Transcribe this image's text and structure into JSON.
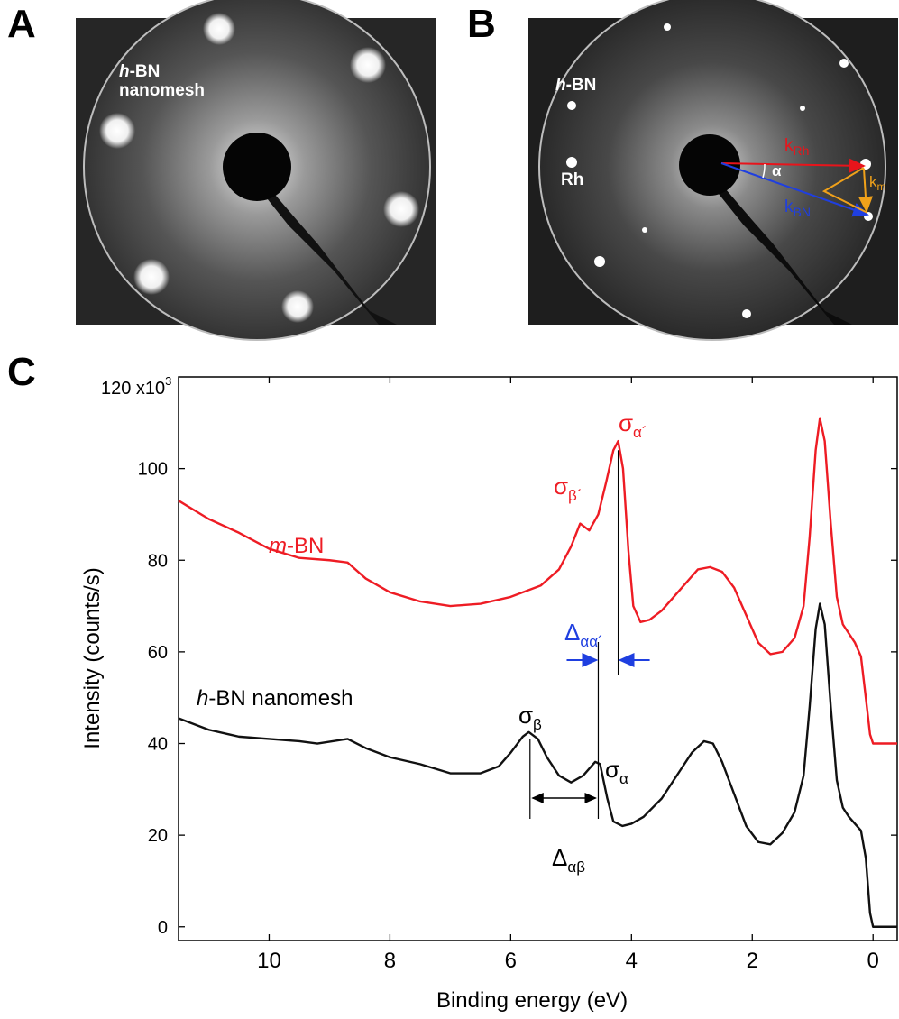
{
  "panels": {
    "a": {
      "letter": "A",
      "label_italic": "h",
      "label_rest": "-BN",
      "label_line2": "nanomesh"
    },
    "b": {
      "letter": "B",
      "label_hbn_italic": "h",
      "label_hbn_rest": "-BN",
      "label_rh": "Rh",
      "k_rh": {
        "main": "k",
        "sub": "Rh",
        "color": "#e8141b"
      },
      "k_bn": {
        "main": "k",
        "sub": "BN",
        "color": "#1f3fe0"
      },
      "k_m": {
        "main": "k",
        "sub": "m",
        "color": "#f0a11a"
      },
      "alpha": "α"
    },
    "c": {
      "letter": "C"
    }
  },
  "chart_data": {
    "type": "line",
    "xlabel": "Binding energy (eV)",
    "ylabel": "Intensity (counts/s)",
    "y_multiplier_label": "120 x10",
    "y_multiplier_exp": "3",
    "xlim": [
      11.5,
      -0.4
    ],
    "ylim": [
      -3,
      120
    ],
    "x_ticks": [
      {
        "value": 10,
        "label": "10"
      },
      {
        "value": 8,
        "label": "8"
      },
      {
        "value": 6,
        "label": "6"
      },
      {
        "value": 4,
        "label": "4"
      },
      {
        "value": 2,
        "label": "2"
      },
      {
        "value": 0,
        "label": "0"
      }
    ],
    "y_ticks": [
      {
        "value": 0,
        "label": "0"
      },
      {
        "value": 20,
        "label": "20"
      },
      {
        "value": 40,
        "label": "40"
      },
      {
        "value": 60,
        "label": "60"
      },
      {
        "value": 80,
        "label": "80"
      },
      {
        "value": 100,
        "label": "100"
      }
    ],
    "series": [
      {
        "name": "m-BN",
        "color": "#ee1c24",
        "points": [
          [
            11.5,
            93
          ],
          [
            11.0,
            89
          ],
          [
            10.5,
            86
          ],
          [
            10.0,
            82.5
          ],
          [
            9.5,
            80.5
          ],
          [
            9.0,
            80
          ],
          [
            8.7,
            79.5
          ],
          [
            8.4,
            76
          ],
          [
            8.0,
            73
          ],
          [
            7.5,
            71
          ],
          [
            7.0,
            70
          ],
          [
            6.5,
            70.5
          ],
          [
            6.0,
            72
          ],
          [
            5.5,
            74.5
          ],
          [
            5.2,
            78
          ],
          [
            5.0,
            83
          ],
          [
            4.85,
            88
          ],
          [
            4.7,
            86.5
          ],
          [
            4.55,
            90
          ],
          [
            4.42,
            97
          ],
          [
            4.3,
            104
          ],
          [
            4.22,
            106
          ],
          [
            4.14,
            100
          ],
          [
            4.05,
            82
          ],
          [
            3.97,
            70
          ],
          [
            3.85,
            66.5
          ],
          [
            3.7,
            67
          ],
          [
            3.5,
            69
          ],
          [
            3.3,
            72
          ],
          [
            3.1,
            75
          ],
          [
            2.9,
            78
          ],
          [
            2.7,
            78.5
          ],
          [
            2.5,
            77.5
          ],
          [
            2.3,
            74
          ],
          [
            2.1,
            68
          ],
          [
            1.9,
            62
          ],
          [
            1.7,
            59.5
          ],
          [
            1.5,
            60
          ],
          [
            1.3,
            63
          ],
          [
            1.15,
            70
          ],
          [
            1.05,
            85
          ],
          [
            0.95,
            104
          ],
          [
            0.88,
            111
          ],
          [
            0.8,
            106
          ],
          [
            0.7,
            88
          ],
          [
            0.6,
            72
          ],
          [
            0.5,
            66
          ],
          [
            0.4,
            64
          ],
          [
            0.3,
            62
          ],
          [
            0.2,
            59
          ],
          [
            0.12,
            50
          ],
          [
            0.05,
            42
          ],
          [
            0.0,
            40
          ],
          [
            -0.2,
            40
          ],
          [
            -0.4,
            40
          ]
        ]
      },
      {
        "name": "h-BN nanomesh",
        "color": "#111111",
        "points": [
          [
            11.5,
            45.5
          ],
          [
            11.0,
            43
          ],
          [
            10.5,
            41.5
          ],
          [
            10.0,
            41
          ],
          [
            9.5,
            40.5
          ],
          [
            9.2,
            40
          ],
          [
            8.7,
            41
          ],
          [
            8.4,
            39
          ],
          [
            8.0,
            37
          ],
          [
            7.5,
            35.5
          ],
          [
            7.0,
            33.5
          ],
          [
            6.5,
            33.5
          ],
          [
            6.2,
            35
          ],
          [
            6.0,
            38
          ],
          [
            5.8,
            41.5
          ],
          [
            5.7,
            42.5
          ],
          [
            5.55,
            41
          ],
          [
            5.4,
            37
          ],
          [
            5.2,
            33
          ],
          [
            5.0,
            31.5
          ],
          [
            4.8,
            33
          ],
          [
            4.6,
            36
          ],
          [
            4.52,
            35.5
          ],
          [
            4.4,
            28
          ],
          [
            4.3,
            23
          ],
          [
            4.15,
            22
          ],
          [
            4.0,
            22.5
          ],
          [
            3.8,
            24
          ],
          [
            3.5,
            28
          ],
          [
            3.2,
            34
          ],
          [
            3.0,
            38
          ],
          [
            2.8,
            40.5
          ],
          [
            2.65,
            40
          ],
          [
            2.5,
            36
          ],
          [
            2.3,
            29
          ],
          [
            2.1,
            22
          ],
          [
            1.9,
            18.5
          ],
          [
            1.7,
            18
          ],
          [
            1.5,
            20.5
          ],
          [
            1.3,
            25
          ],
          [
            1.15,
            33
          ],
          [
            1.05,
            48
          ],
          [
            0.95,
            65
          ],
          [
            0.88,
            70.5
          ],
          [
            0.8,
            66
          ],
          [
            0.7,
            48
          ],
          [
            0.6,
            32
          ],
          [
            0.5,
            26
          ],
          [
            0.4,
            24
          ],
          [
            0.3,
            22.5
          ],
          [
            0.2,
            21
          ],
          [
            0.12,
            15
          ],
          [
            0.05,
            3
          ],
          [
            0.0,
            0
          ],
          [
            -0.4,
            0
          ]
        ]
      }
    ],
    "annotations": {
      "m_bn_label_italic": "m",
      "m_bn_label_rest": "-BN",
      "h_bn_label_italic": "h",
      "h_bn_label_rest": "-BN nanomesh",
      "sigma_alpha_prime": {
        "main": "σ",
        "sub": "α´",
        "x": 4.22
      },
      "sigma_beta_prime": {
        "main": "σ",
        "sub": "β´",
        "x": 4.85
      },
      "sigma_alpha": {
        "main": "σ",
        "sub": "α",
        "x": 4.55
      },
      "sigma_beta": {
        "main": "σ",
        "sub": "β",
        "x": 5.68
      },
      "delta_alpha_alpha_prime": {
        "main": "Δ",
        "sub": "αα´",
        "color": "#1f3fe0"
      },
      "delta_alpha_beta": {
        "main": "Δ",
        "sub": "αβ"
      },
      "marker_color": "#ee1c24"
    }
  }
}
